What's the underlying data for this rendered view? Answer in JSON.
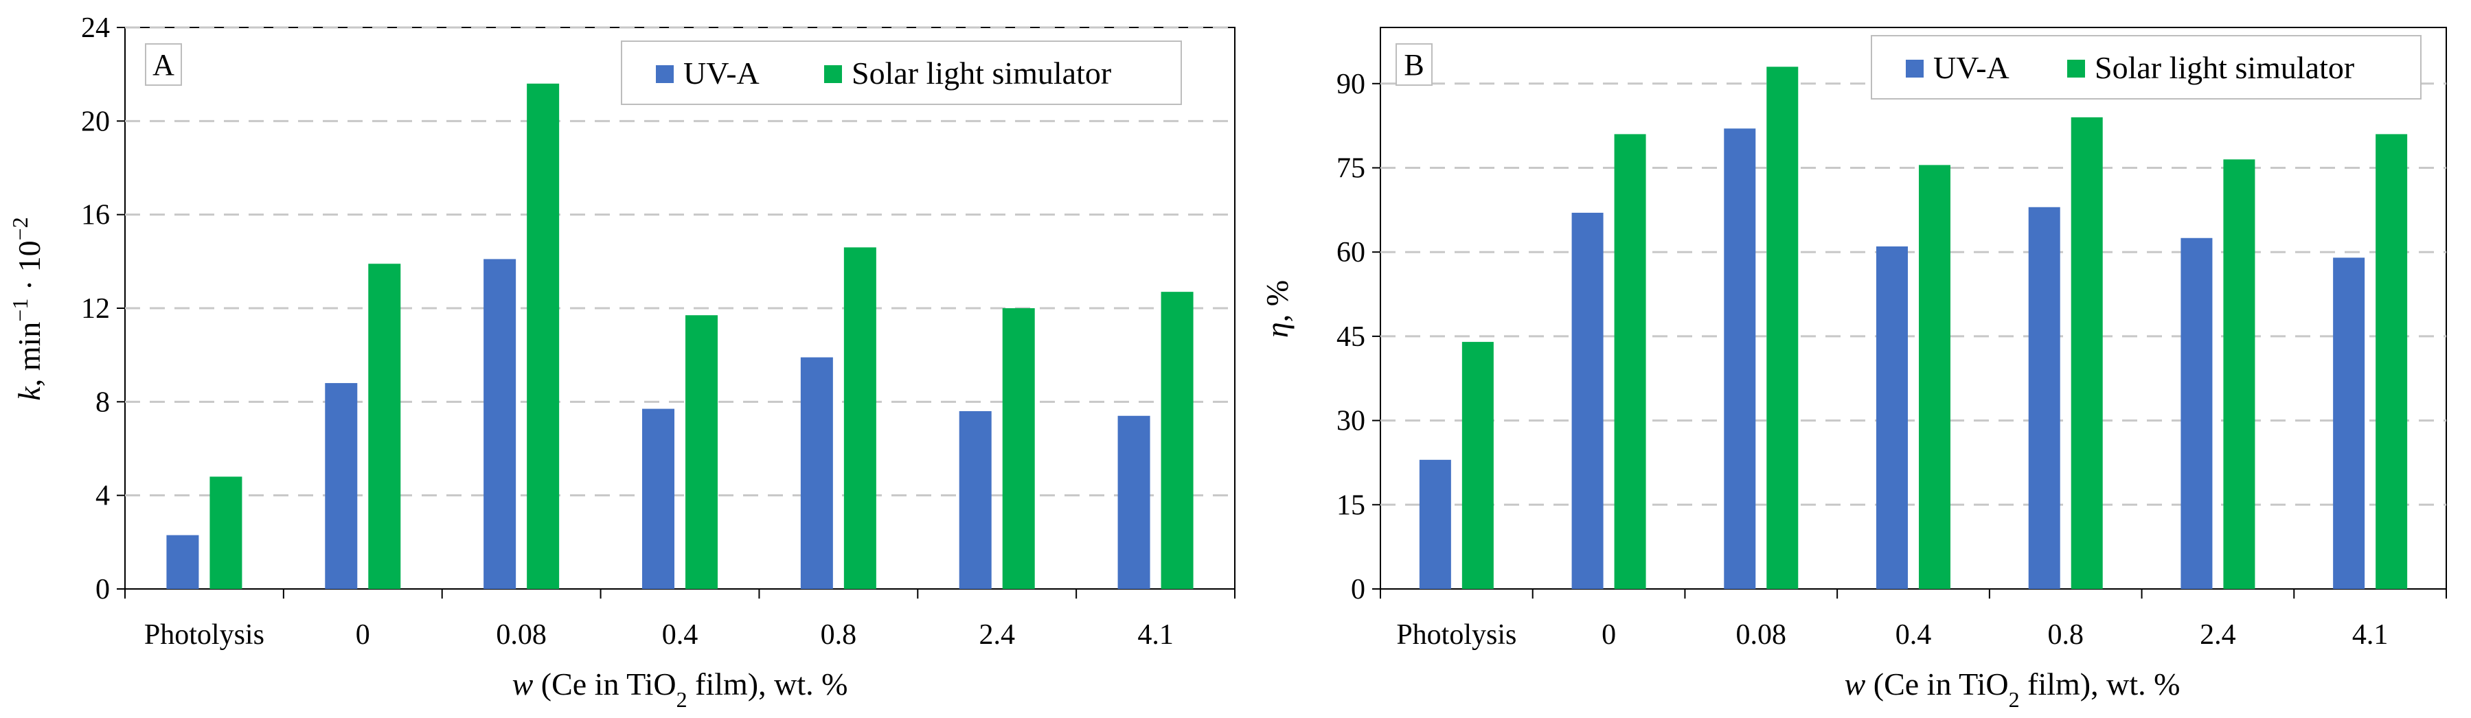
{
  "chart_data": [
    {
      "type": "bar",
      "panel_label": "A",
      "categories": [
        "Photolysis",
        "0",
        "0.08",
        "0.4",
        "0.8",
        "2.4",
        "4.1"
      ],
      "series": [
        {
          "name": "UV-A",
          "color": "#4472C4",
          "values": [
            2.3,
            8.8,
            14.1,
            7.7,
            9.9,
            7.6,
            7.4
          ]
        },
        {
          "name": "Solar light simulator",
          "color": "#00B050",
          "values": [
            4.8,
            13.9,
            21.6,
            11.7,
            14.6,
            12.0,
            12.7
          ]
        }
      ],
      "yticks": [
        0,
        4,
        8,
        12,
        16,
        20,
        24
      ],
      "ylim": [
        0,
        24
      ],
      "ylabel_parts": {
        "var": "k",
        "rest": ", min",
        "sup1": "−1",
        "mid": " · 10",
        "sup2": "−2"
      },
      "xlabel_parts": {
        "var": "w",
        "pre": " (Ce in TiO",
        "sub": "2",
        "post": " film), wt. %"
      },
      "legend_position": "top-right",
      "grid": "horizontal-dashed"
    },
    {
      "type": "bar",
      "panel_label": "B",
      "categories": [
        "Photolysis",
        "0",
        "0.08",
        "0.4",
        "0.8",
        "2.4",
        "4.1"
      ],
      "series": [
        {
          "name": "UV-A",
          "color": "#4472C4",
          "values": [
            23,
            67,
            82,
            61,
            68,
            62.5,
            59
          ]
        },
        {
          "name": "Solar light simulator",
          "color": "#00B050",
          "values": [
            44,
            81,
            93,
            75.5,
            84,
            76.5,
            81
          ]
        }
      ],
      "yticks": [
        0,
        15,
        30,
        45,
        60,
        75,
        90
      ],
      "ylim": [
        0,
        100
      ],
      "ylabel_parts": {
        "var": "η",
        "rest": ", %"
      },
      "xlabel_parts": {
        "var": "w",
        "pre": " (Ce in TiO",
        "sub": "2",
        "post": " film), wt. %"
      },
      "legend_position": "top-right",
      "grid": "horizontal-dashed"
    }
  ]
}
